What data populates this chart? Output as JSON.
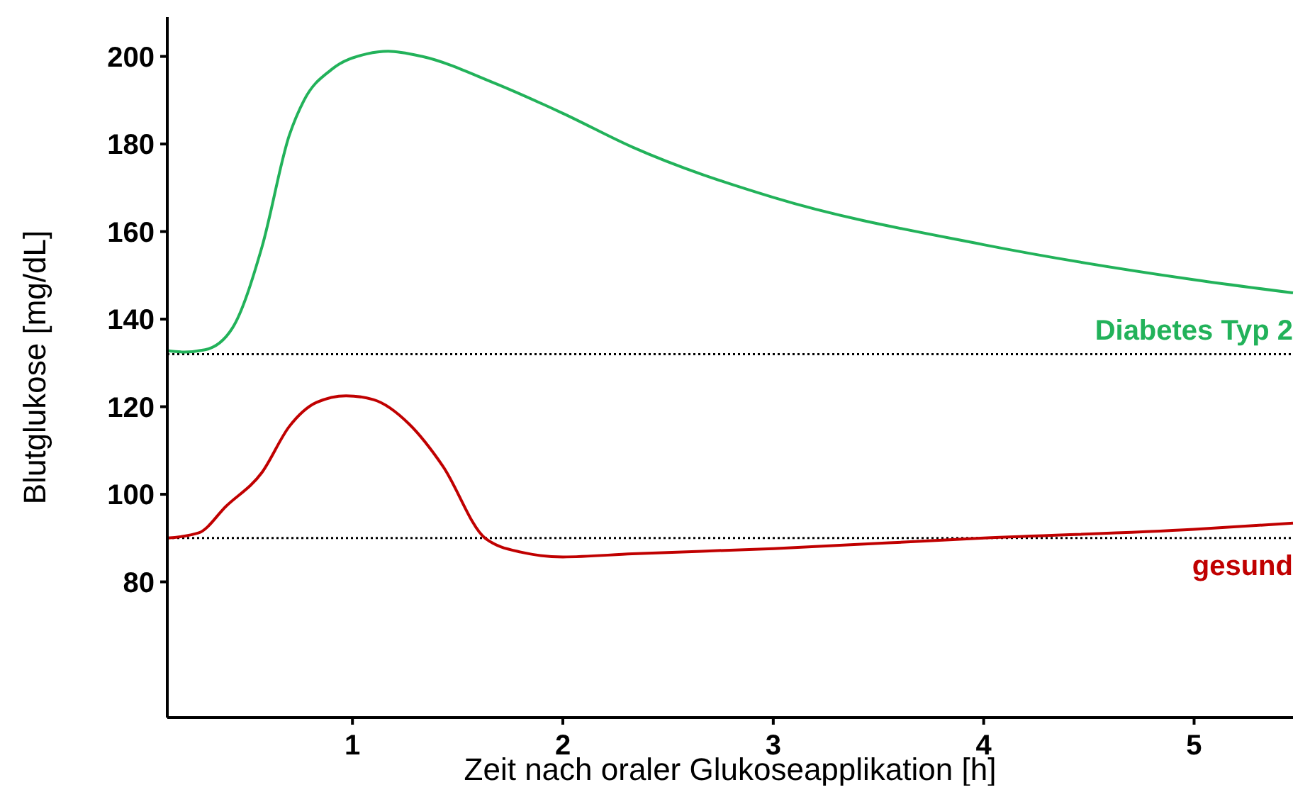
{
  "chart_data": {
    "type": "line",
    "xlabel": "Zeit nach oraler Glukoseapplikation [h]",
    "ylabel": "Blutglukose [mg/dL]",
    "xlim": [
      0.12,
      5.47
    ],
    "xticks": [
      1,
      2,
      3,
      4,
      5
    ],
    "ylim": [
      49,
      209
    ],
    "yticks": [
      80,
      100,
      120,
      140,
      160,
      180,
      200
    ],
    "grid": false,
    "line_style": "solid",
    "marker": "none",
    "series": [
      {
        "name": "Diabetes Typ 2",
        "color": "#22b25a",
        "x": [
          0.12,
          0.2,
          0.3,
          0.43,
          0.57,
          0.7,
          0.77,
          0.9,
          1.07,
          1.17,
          1.33,
          1.67,
          2,
          2.33,
          3,
          4,
          5,
          5.47
        ],
        "values": [
          132.8,
          132.5,
          133,
          138,
          156.5,
          182,
          190,
          197,
          200.6,
          201.2,
          200,
          194,
          187,
          179.3,
          167.8,
          157,
          149,
          146
        ]
      },
      {
        "name": "gesund",
        "color": "#c00000",
        "x": [
          0.12,
          0.27,
          0.4,
          0.57,
          0.7,
          0.83,
          0.97,
          1.1,
          1.27,
          1.43,
          1.63,
          1.8,
          2,
          2.33,
          3,
          4,
          5,
          5.47
        ],
        "values": [
          90,
          91.2,
          97.3,
          105,
          115.5,
          121,
          122.5,
          121.6,
          116,
          106.4,
          90,
          86.8,
          85.7,
          86.4,
          87.6,
          90,
          92,
          93.4
        ]
      }
    ],
    "ref_lines": [
      {
        "axis": "y",
        "value": 132,
        "line_style": "dotted",
        "color": "#000000"
      },
      {
        "axis": "y",
        "value": 90,
        "line_style": "dotted",
        "color": "#000000"
      }
    ]
  }
}
